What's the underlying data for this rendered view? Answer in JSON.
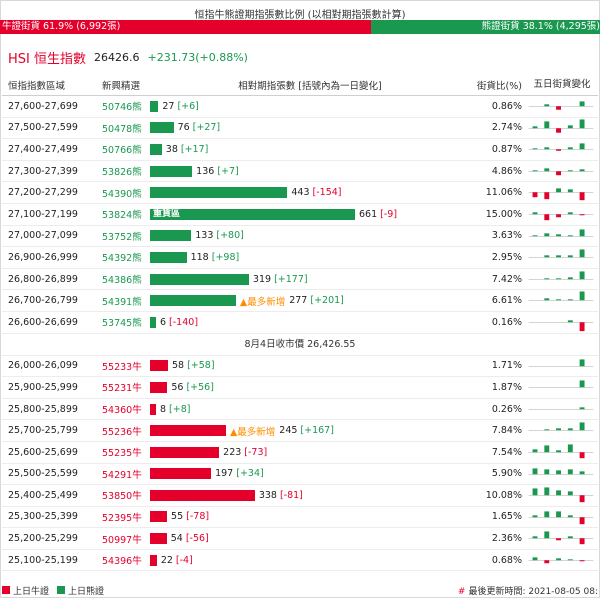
{
  "ratio": {
    "title": "恒指牛熊證期指張數比例 (以相對期指張數計算)",
    "bull_label": "牛證街貨 61.9% (6,992張)",
    "bear_label": "熊證街貨 38.1% (4,295張)",
    "bull_fraction": 0.619,
    "bull_color": "#e4002b",
    "bear_color": "#1a9850"
  },
  "index": {
    "name": "HSI 恒生指數",
    "price": "26426.6",
    "change": "+231.73(+0.88%)"
  },
  "table": {
    "headers": {
      "range": "恒指指數區域",
      "pick": "新興精選",
      "contracts": "相對期指張數 [括號內為一日變化]",
      "ratio": "街貨比(%)",
      "five_day": "五日街貨變化"
    },
    "max_qty": 661,
    "bear_rows": [
      {
        "range": "27,600-27,699",
        "code": "50746熊",
        "qty": 27,
        "qty_text": "27",
        "chg": "[+6]",
        "ratio": "0.86%",
        "spark": [
          0,
          0.2,
          -0.35,
          0,
          0.5
        ]
      },
      {
        "range": "27,500-27,599",
        "code": "50478熊",
        "qty": 76,
        "qty_text": "76",
        "chg": "[+27]",
        "ratio": "2.74%",
        "spark": [
          0.2,
          0.7,
          -0.45,
          0.3,
          0.9
        ]
      },
      {
        "range": "27,400-27,499",
        "code": "50766熊",
        "qty": 38,
        "qty_text": "38",
        "chg": "[+17]",
        "ratio": "0.87%",
        "spark": [
          0.1,
          0.2,
          -0.15,
          0.2,
          0.6
        ]
      },
      {
        "range": "27,300-27,399",
        "code": "53826熊",
        "qty": 136,
        "qty_text": "136",
        "chg": "[+7]",
        "ratio": "4.86%",
        "spark": [
          0.1,
          0.3,
          -0.4,
          0.1,
          0.2
        ]
      },
      {
        "range": "27,200-27,299",
        "code": "54390熊",
        "qty": 443,
        "qty_text": "443",
        "chg": "[-154]",
        "ratio": "11.06%",
        "spark": [
          -0.5,
          -0.7,
          0.4,
          0.3,
          -0.8
        ]
      },
      {
        "range": "27,100-27,199",
        "code": "53824熊",
        "qty": 661,
        "qty_text": "661",
        "chg": "[-9]",
        "ratio": "15.00%",
        "label": "重貨區",
        "spark": [
          0.2,
          -0.6,
          -0.3,
          0.2,
          -0.1
        ]
      },
      {
        "range": "27,000-27,099",
        "code": "53752熊",
        "qty": 133,
        "qty_text": "133",
        "chg": "[+80]",
        "ratio": "3.63%",
        "spark": [
          0.1,
          0.3,
          0.2,
          0.1,
          0.7
        ]
      },
      {
        "range": "26,900-26,999",
        "code": "54392熊",
        "qty": 118,
        "qty_text": "118",
        "chg": "[+98]",
        "ratio": "2.95%",
        "spark": [
          0,
          0.2,
          0.2,
          0.2,
          0.8
        ]
      },
      {
        "range": "26,800-26,899",
        "code": "54386熊",
        "qty": 319,
        "qty_text": "319",
        "chg": "[+177]",
        "ratio": "7.42%",
        "spark": [
          0,
          0.1,
          0.1,
          0.2,
          0.8
        ]
      },
      {
        "range": "26,700-26,799",
        "code": "54391熊",
        "qty": 277,
        "qty_text": "277",
        "chg": "[+201]",
        "ratio": "6.61%",
        "newest": "▲最多新增",
        "spark": [
          0,
          0.2,
          0.1,
          0.1,
          0.9
        ]
      },
      {
        "range": "26,600-26,699",
        "code": "53745熊",
        "qty": 6,
        "qty_text": "6",
        "chg": "[-140]",
        "ratio": "0.16%",
        "spark": [
          0,
          0,
          0,
          0.2,
          -0.9
        ]
      }
    ],
    "divider": "8月4日收市價 26,426.55",
    "bull_rows": [
      {
        "range": "26,000-26,099",
        "code": "55233牛",
        "qty": 58,
        "qty_text": "58",
        "chg": "[+58]",
        "ratio": "1.71%",
        "spark": [
          0,
          0,
          0,
          0,
          0.7
        ]
      },
      {
        "range": "25,900-25,999",
        "code": "55231牛",
        "qty": 56,
        "qty_text": "56",
        "chg": "[+56]",
        "ratio": "1.87%",
        "spark": [
          0,
          0,
          0,
          0,
          0.7
        ]
      },
      {
        "range": "25,800-25,899",
        "code": "54360牛",
        "qty": 8,
        "qty_text": "8",
        "chg": "[+8]",
        "ratio": "0.26%",
        "spark": [
          0,
          0,
          0,
          0,
          0.2
        ]
      },
      {
        "range": "25,700-25,799",
        "code": "55236牛",
        "qty": 245,
        "qty_text": "245",
        "chg": "[+167]",
        "ratio": "7.84%",
        "newest": "▲最多新增",
        "spark": [
          0,
          0.1,
          0.2,
          0.2,
          0.8
        ]
      },
      {
        "range": "25,600-25,699",
        "code": "55235牛",
        "qty": 223,
        "qty_text": "223",
        "chg": "[-73]",
        "ratio": "7.54%",
        "spark": [
          0.3,
          0.7,
          0.2,
          0.8,
          -0.6
        ]
      },
      {
        "range": "25,500-25,599",
        "code": "54291牛",
        "qty": 197,
        "qty_text": "197",
        "chg": "[+34]",
        "ratio": "5.90%",
        "spark": [
          0.6,
          0.5,
          0.4,
          0.5,
          0.3
        ]
      },
      {
        "range": "25,400-25,499",
        "code": "53850牛",
        "qty": 338,
        "qty_text": "338",
        "chg": "[-81]",
        "ratio": "10.08%",
        "spark": [
          0.7,
          0.8,
          0.5,
          0.4,
          -0.7
        ]
      },
      {
        "range": "25,300-25,399",
        "code": "52395牛",
        "qty": 55,
        "qty_text": "55",
        "chg": "[-78]",
        "ratio": "1.65%",
        "spark": [
          0.2,
          0.6,
          0.6,
          0.2,
          -0.7
        ]
      },
      {
        "range": "25,200-25,299",
        "code": "50997牛",
        "qty": 54,
        "qty_text": "54",
        "chg": "[-56]",
        "ratio": "2.36%",
        "spark": [
          0.2,
          0.7,
          -0.2,
          0.2,
          -0.6
        ]
      },
      {
        "range": "25,100-25,199",
        "code": "54396牛",
        "qty": 22,
        "qty_text": "22",
        "chg": "[-4]",
        "ratio": "0.68%",
        "spark": [
          0.3,
          -0.3,
          0.2,
          0.1,
          -0.1
        ]
      }
    ]
  },
  "footer": {
    "legend_bull": "上日牛證",
    "legend_bear": "上日熊證",
    "updated_hash": "#",
    "updated": "最後更新時間: 2021-08-05 08:"
  }
}
